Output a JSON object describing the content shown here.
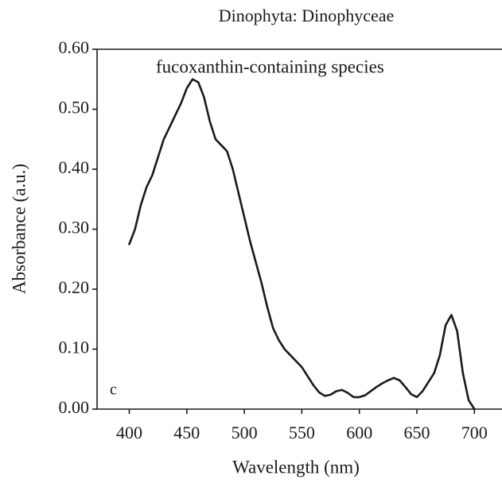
{
  "chart_data": {
    "type": "line",
    "title": "Dinophyta: Dinophyceae",
    "annotation": "fucoxanthin-containing species",
    "panel_label": "c",
    "x_label": "Wavelength (nm)",
    "y_label": "Absorbance (a.u.)",
    "x": [
      400,
      405,
      410,
      415,
      420,
      425,
      430,
      435,
      440,
      445,
      450,
      455,
      460,
      465,
      470,
      475,
      480,
      485,
      490,
      495,
      500,
      505,
      510,
      515,
      520,
      525,
      530,
      535,
      540,
      545,
      550,
      555,
      560,
      565,
      570,
      575,
      580,
      585,
      590,
      595,
      600,
      605,
      610,
      615,
      620,
      625,
      630,
      635,
      640,
      645,
      650,
      655,
      660,
      665,
      670,
      675,
      680,
      685,
      690,
      695,
      700
    ],
    "series": [
      {
        "name": "fucoxanthin-containing species",
        "color": "#1a1a1a",
        "values": [
          0.275,
          0.3,
          0.34,
          0.37,
          0.39,
          0.42,
          0.45,
          0.47,
          0.49,
          0.51,
          0.535,
          0.55,
          0.545,
          0.52,
          0.48,
          0.45,
          0.44,
          0.43,
          0.4,
          0.36,
          0.32,
          0.28,
          0.245,
          0.21,
          0.17,
          0.135,
          0.115,
          0.1,
          0.09,
          0.08,
          0.07,
          0.055,
          0.04,
          0.028,
          0.022,
          0.024,
          0.03,
          0.032,
          0.027,
          0.02,
          0.02,
          0.023,
          0.03,
          0.037,
          0.043,
          0.048,
          0.052,
          0.048,
          0.037,
          0.025,
          0.02,
          0.03,
          0.045,
          0.06,
          0.09,
          0.14,
          0.157,
          0.13,
          0.06,
          0.015,
          0.0
        ]
      }
    ],
    "xlim": [
      372,
      724
    ],
    "ylim": [
      0,
      0.6
    ],
    "xticks": [
      400,
      450,
      500,
      550,
      600,
      650,
      700
    ],
    "yticks": [
      {
        "value": 0,
        "label": "0.00"
      },
      {
        "value": 0.1,
        "label": "0.10"
      },
      {
        "value": 0.2,
        "label": "0.20"
      },
      {
        "value": 0.3,
        "label": "0.30"
      },
      {
        "value": 0.4,
        "label": "0.40"
      },
      {
        "value": 0.5,
        "label": "0.50"
      },
      {
        "value": 0.6,
        "label": "0.60"
      }
    ],
    "grid": false
  }
}
